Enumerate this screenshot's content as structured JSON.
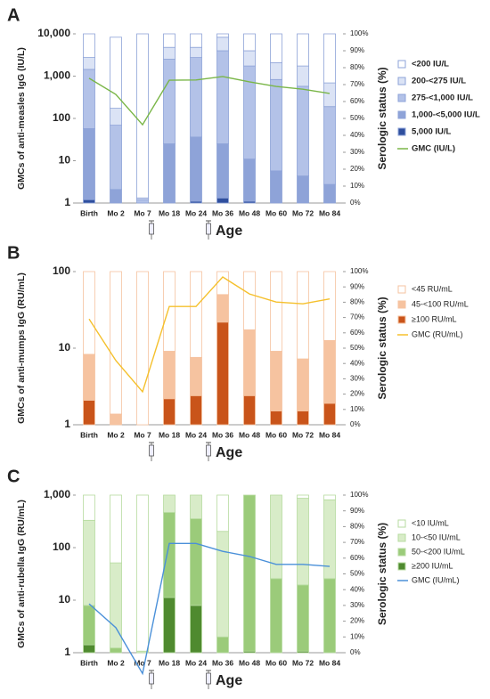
{
  "chart_data": [
    {
      "type": "bar",
      "panel": "A",
      "ylabel": "GMCs of anti-measles IgG (IU/L)",
      "y2label": "Serologic status (%)",
      "xlabel": "Age",
      "categories": [
        "Birth",
        "Mo 2",
        "Mo 7",
        "Mo 18",
        "Mo 24",
        "Mo 36",
        "Mo 48",
        "Mo 60",
        "Mo 72",
        "Mo 84"
      ],
      "ylog": true,
      "ylim": [
        1,
        10000
      ],
      "yticks": [
        1,
        10,
        100,
        {
          "value": 1000,
          "label": "1,000"
        },
        {
          "value": 10000,
          "label": "10,000"
        }
      ],
      "y2lim": [
        0,
        100
      ],
      "y2ticks": [
        {
          "value": 0,
          "label": "0%"
        },
        {
          "value": 10,
          "label": "10%"
        },
        {
          "value": 20,
          "label": "20%"
        },
        {
          "value": 30,
          "label": "30%"
        },
        {
          "value": 40,
          "label": "40%"
        },
        {
          "value": 50,
          "label": "50%"
        },
        {
          "value": 60,
          "label": "60%"
        },
        {
          "value": 70,
          "label": "70%"
        },
        {
          "value": 80,
          "label": "80%"
        },
        {
          "value": 90,
          "label": "90%"
        },
        {
          "value": 100,
          "label": "100%"
        }
      ],
      "outline_color": "#8ea3d8",
      "series": [
        {
          "name": "<200 IU/L",
          "axis": "y2",
          "color": "#ffffff",
          "values": [
            14,
            42,
            97,
            8,
            8,
            2,
            10,
            17,
            19,
            29
          ]
        },
        {
          "name": "200-<275 IU/L",
          "axis": "y2",
          "color": "#dbe3f5",
          "values": [
            7,
            10,
            1,
            7,
            6,
            8,
            9,
            10,
            12,
            14
          ]
        },
        {
          "name": "275-<1,000 IU/L",
          "axis": "y2",
          "color": "#b3c2e8",
          "values": [
            35,
            38,
            2,
            50,
            47,
            55,
            55,
            54,
            53,
            46
          ]
        },
        {
          "name": "1,000-<5,000 IU/L",
          "axis": "y2",
          "color": "#8ea3d8",
          "values": [
            42,
            8,
            0,
            35,
            38,
            32,
            25,
            19,
            16,
            11
          ]
        },
        {
          "name": "5,000 IU/L",
          "axis": "y2",
          "color": "#2f4f9e",
          "values": [
            2,
            0,
            0,
            0,
            1,
            3,
            1,
            0,
            0,
            0
          ]
        },
        {
          "name": "GMC (IU/L)",
          "type": "line",
          "axis": "y",
          "color": "#7ab648",
          "values": [
            890,
            370,
            71,
            800,
            810,
            980,
            730,
            570,
            490,
            390
          ]
        }
      ]
    },
    {
      "type": "bar",
      "panel": "B",
      "ylabel": "GMCs of anti-mumps IgG (RU/mL)",
      "y2label": "Serologic status (%)",
      "xlabel": "Age",
      "categories": [
        "Birth",
        "Mo 2",
        "Mo 7",
        "Mo 18",
        "Mo 24",
        "Mo 36",
        "Mo 48",
        "Mo 60",
        "Mo 72",
        "Mo 84"
      ],
      "ylog": true,
      "ylim": [
        1,
        100
      ],
      "yticks": [
        1,
        10,
        100
      ],
      "y2lim": [
        0,
        100
      ],
      "y2ticks": [
        {
          "value": 0,
          "label": "0%"
        },
        {
          "value": 10,
          "label": "10%"
        },
        {
          "value": 20,
          "label": "20%"
        },
        {
          "value": 30,
          "label": "30%"
        },
        {
          "value": 40,
          "label": "40%"
        },
        {
          "value": 50,
          "label": "50%"
        },
        {
          "value": 60,
          "label": "60%"
        },
        {
          "value": 70,
          "label": "70%"
        },
        {
          "value": 80,
          "label": "80%"
        },
        {
          "value": 90,
          "label": "90%"
        },
        {
          "value": 100,
          "label": "100%"
        }
      ],
      "outline_color": "#f6c3a0",
      "series": [
        {
          "name": "<45 RU/mL",
          "axis": "y2",
          "color": "#ffffff",
          "values": [
            54,
            93,
            100,
            52,
            56,
            15,
            38,
            52,
            57,
            45
          ]
        },
        {
          "name": "45-<100 RU/mL",
          "axis": "y2",
          "color": "#f6c3a0",
          "values": [
            30,
            7,
            0,
            31,
            25,
            18,
            43,
            39,
            34,
            41
          ]
        },
        {
          "name": "≥100 RU/mL",
          "axis": "y2",
          "color": "#c9541a",
          "values": [
            16,
            0,
            0,
            17,
            19,
            67,
            19,
            9,
            9,
            14
          ]
        },
        {
          "name": "GMC (RU/mL)",
          "type": "line",
          "axis": "y",
          "color": "#f5c02c",
          "values": [
            24,
            6.9,
            2.7,
            35,
            35,
            85,
            51,
            40,
            38,
            44
          ]
        }
      ]
    },
    {
      "type": "bar",
      "panel": "C",
      "ylabel": "GMCs of anti-rubella IgG (RU/mL)",
      "y2label": "Serologic status (%)",
      "xlabel": "Age",
      "categories": [
        "Birth",
        "Mo 2",
        "Mo 7",
        "Mo 18",
        "Mo 24",
        "Mo 36",
        "Mo 48",
        "Mo 60",
        "Mo 72",
        "Mo 84"
      ],
      "ylog": true,
      "ylim": [
        1,
        1000
      ],
      "yticks": [
        1,
        10,
        100,
        {
          "value": 1000,
          "label": "1,000"
        }
      ],
      "y2lim": [
        0,
        100
      ],
      "y2ticks": [
        {
          "value": 0,
          "label": "0%"
        },
        {
          "value": 10,
          "label": "10%"
        },
        {
          "value": 20,
          "label": "20%"
        },
        {
          "value": 30,
          "label": "30%"
        },
        {
          "value": 40,
          "label": "40%"
        },
        {
          "value": 50,
          "label": "50%"
        },
        {
          "value": 60,
          "label": "60%"
        },
        {
          "value": 70,
          "label": "70%"
        },
        {
          "value": 80,
          "label": "80%"
        },
        {
          "value": 90,
          "label": "90%"
        },
        {
          "value": 100,
          "label": "100%"
        }
      ],
      "outline_color": "#b7dba0",
      "series": [
        {
          "name": "<10 IU/mL",
          "axis": "y2",
          "color": "#ffffff",
          "values": [
            16,
            43,
            99,
            0,
            0,
            23,
            0,
            0,
            2,
            3
          ]
        },
        {
          "name": "10-<50 IU/mL",
          "axis": "y2",
          "color": "#d8ecc8",
          "values": [
            54,
            54,
            1,
            11,
            15,
            67,
            0,
            53,
            55,
            50
          ]
        },
        {
          "name": "50-<200 IU/mL",
          "axis": "y2",
          "color": "#9bcb7a",
          "values": [
            25,
            3,
            0,
            54,
            55,
            10,
            99,
            47,
            42,
            47
          ]
        },
        {
          "name": "≥200 IU/mL",
          "axis": "y2",
          "color": "#4f8a2f",
          "values": [
            5,
            0,
            0,
            35,
            30,
            0,
            1,
            0,
            1,
            0
          ]
        },
        {
          "name": "GMC (IU/mL)",
          "type": "line",
          "axis": "y",
          "color": "#4a90d9",
          "values": [
            8.5,
            3,
            0.4,
            120,
            120,
            85,
            68,
            48,
            48,
            44
          ]
        }
      ]
    }
  ]
}
